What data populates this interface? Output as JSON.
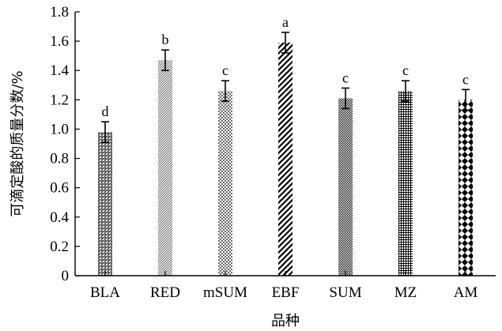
{
  "chart_data": {
    "type": "bar",
    "categories": [
      "BLA",
      "RED",
      "mSUM",
      "EBF",
      "SUM",
      "MZ",
      "AM"
    ],
    "values": [
      0.98,
      1.47,
      1.26,
      1.59,
      1.21,
      1.26,
      1.2
    ],
    "errors": [
      0.07,
      0.07,
      0.07,
      0.07,
      0.07,
      0.07,
      0.07
    ],
    "significance": [
      "d",
      "b",
      "c",
      "a",
      "c",
      "c",
      "c"
    ],
    "patterns": [
      "diag-fine",
      "diag-dense",
      "dots",
      "diag-bold",
      "crosshatch-dense",
      "grid",
      "diamonds"
    ],
    "title": "",
    "xlabel": "品种",
    "ylabel": "可滴定酸的质量分数/%",
    "ylim": [
      0,
      1.8
    ],
    "yticks": [
      "0",
      "0.2",
      "0.4",
      "0.6",
      "0.8",
      "1.0",
      "1.2",
      "1.4",
      "1.6",
      "1.8"
    ],
    "grid": false,
    "legend": "none"
  }
}
